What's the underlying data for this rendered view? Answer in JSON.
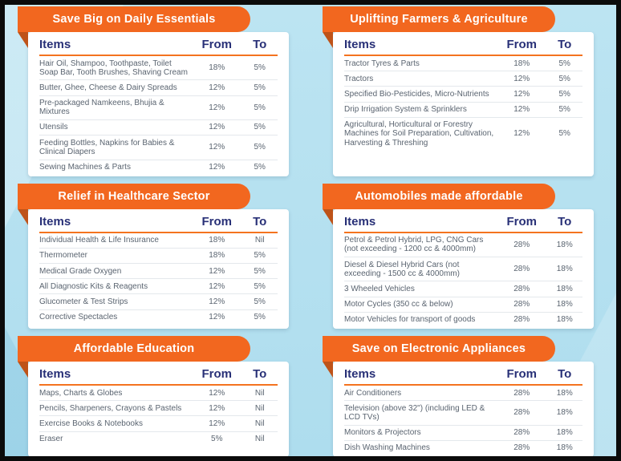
{
  "colors": {
    "ribbon_orange": "#F2671F",
    "ribbon_fold": "#BE5319",
    "header_underline": "#F4731F",
    "header_navy": "#283077",
    "row_text_gray": "#5A6470",
    "background_blue": "#B6E1F0",
    "card_white": "#FFFFFF",
    "frame_black": "#0B0B0B"
  },
  "columns": [
    "Items",
    "From",
    "To"
  ],
  "panels": [
    {
      "title": "Save Big on Daily Essentials",
      "rows": [
        {
          "item": "Hair Oil, Shampoo, Toothpaste, Toilet Soap Bar, Tooth Brushes, Shaving Cream",
          "from": "18%",
          "to": "5%"
        },
        {
          "item": "Butter, Ghee, Cheese & Dairy Spreads",
          "from": "12%",
          "to": "5%"
        },
        {
          "item": "Pre-packaged Namkeens, Bhujia & Mixtures",
          "from": "12%",
          "to": "5%"
        },
        {
          "item": "Utensils",
          "from": "12%",
          "to": "5%"
        },
        {
          "item": "Feeding Bottles, Napkins for Babies & Clinical Diapers",
          "from": "12%",
          "to": "5%"
        },
        {
          "item": "Sewing Machines & Parts",
          "from": "12%",
          "to": "5%"
        }
      ]
    },
    {
      "title": "Uplifting Farmers & Agriculture",
      "rows": [
        {
          "item": "Tractor Tyres & Parts",
          "from": "18%",
          "to": "5%"
        },
        {
          "item": "Tractors",
          "from": "12%",
          "to": "5%"
        },
        {
          "item": "Specified Bio-Pesticides, Micro-Nutrients",
          "from": "12%",
          "to": "5%"
        },
        {
          "item": "Drip Irrigation System & Sprinklers",
          "from": "12%",
          "to": "5%"
        },
        {
          "item": "Agricultural, Horticultural or Forestry Machines for Soil Preparation, Cultivation, Harvesting & Threshing",
          "from": "12%",
          "to": "5%"
        }
      ]
    },
    {
      "title": "Relief in Healthcare Sector",
      "rows": [
        {
          "item": "Individual Health & Life Insurance",
          "from": "18%",
          "to": "Nil"
        },
        {
          "item": "Thermometer",
          "from": "18%",
          "to": "5%"
        },
        {
          "item": "Medical Grade Oxygen",
          "from": "12%",
          "to": "5%"
        },
        {
          "item": "All Diagnostic Kits & Reagents",
          "from": "12%",
          "to": "5%"
        },
        {
          "item": "Glucometer & Test Strips",
          "from": "12%",
          "to": "5%"
        },
        {
          "item": "Corrective Spectacles",
          "from": "12%",
          "to": "5%"
        }
      ]
    },
    {
      "title": "Automobiles made affordable",
      "rows": [
        {
          "item": "Petrol & Petrol Hybrid, LPG, CNG Cars (not exceeding - 1200 cc & 4000mm)",
          "from": "28%",
          "to": "18%"
        },
        {
          "item": "Diesel & Diesel Hybrid Cars (not exceeding - 1500 cc & 4000mm)",
          "from": "28%",
          "to": "18%"
        },
        {
          "item": "3 Wheeled Vehicles",
          "from": "28%",
          "to": "18%"
        },
        {
          "item": "Motor Cycles (350 cc & below)",
          "from": "28%",
          "to": "18%"
        },
        {
          "item": "Motor Vehicles for transport of goods",
          "from": "28%",
          "to": "18%"
        }
      ]
    },
    {
      "title": "Affordable Education",
      "rows": [
        {
          "item": "Maps, Charts & Globes",
          "from": "12%",
          "to": "Nil"
        },
        {
          "item": "Pencils, Sharpeners, Crayons & Pastels",
          "from": "12%",
          "to": "Nil"
        },
        {
          "item": "Exercise Books & Notebooks",
          "from": "12%",
          "to": "Nil"
        },
        {
          "item": "Eraser",
          "from": "5%",
          "to": "Nil"
        }
      ]
    },
    {
      "title": "Save on Electronic Appliances",
      "rows": [
        {
          "item": "Air Conditioners",
          "from": "28%",
          "to": "18%"
        },
        {
          "item": "Television (above 32\") (including LED & LCD TVs)",
          "from": "28%",
          "to": "18%"
        },
        {
          "item": "Monitors & Projectors",
          "from": "28%",
          "to": "18%"
        },
        {
          "item": "Dish Washing Machines",
          "from": "28%",
          "to": "18%"
        }
      ]
    }
  ]
}
